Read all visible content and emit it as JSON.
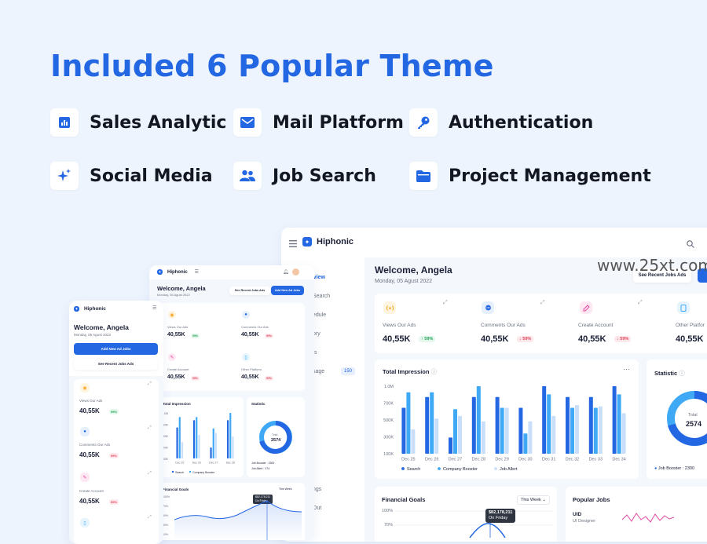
{
  "headline": "Included 6 Popular Theme",
  "features": [
    {
      "label": "Sales Analytic",
      "icon": "bar-chart-icon"
    },
    {
      "label": "Mail Platform",
      "icon": "mail-icon"
    },
    {
      "label": "Authentication",
      "icon": "key-icon"
    },
    {
      "label": "Social Media",
      "icon": "sparkle-icon"
    },
    {
      "label": "Job Search",
      "icon": "users-icon"
    },
    {
      "label": "Project Management",
      "icon": "folder-icon"
    }
  ],
  "watermark": "www.25xt.com",
  "colors": {
    "accent": "#2467e3",
    "background": "#eef4fd",
    "series_light": "#3fa9f5",
    "series_pale": "#c9def9"
  },
  "big_dashboard": {
    "brand": "Hiphonic",
    "welcome": "Welcome, Angela",
    "date": "Monday, 05 Agust 2022",
    "see_recent": "See Recent Jobs Ads",
    "add_btn": "A",
    "nav": [
      {
        "label": "rview"
      },
      {
        "label": "Search"
      },
      {
        "label": "edule"
      },
      {
        "label": "ory"
      },
      {
        "label": "ts"
      },
      {
        "label": "sage",
        "count": "150"
      },
      {
        "label": "ngs"
      },
      {
        "label": "Out"
      }
    ],
    "stats": [
      {
        "label": "Views Our Ads",
        "value": "40,55K",
        "change": "59%",
        "trend": "up"
      },
      {
        "label": "Comments Our Ads",
        "value": "40,55K",
        "change": "59%",
        "trend": "down"
      },
      {
        "label": "Create Account",
        "value": "40,55K",
        "change": "59%",
        "trend": "down"
      },
      {
        "label": "Other Platfor",
        "value": "40,55K"
      }
    ],
    "impression": {
      "title": "Total Impression",
      "legend": [
        "Search",
        "Company Booster",
        "Job Allert"
      ]
    },
    "statistic": {
      "title": "Statistic",
      "total_label": "Total",
      "total_value": "2574",
      "legend": "Job Booster : 2300"
    },
    "financial": {
      "title": "Financial Goals",
      "filter": "This Week",
      "ticks": [
        "100%",
        "70%"
      ],
      "tooltip_value": "$82,178,211",
      "tooltip_day": "On Friday"
    },
    "popular": {
      "title": "Popular Jobs",
      "job": "UID",
      "role": "UI Designer"
    }
  },
  "chart_data": {
    "type": "bar",
    "title": "Total Impression",
    "categories": [
      "Dec 25",
      "Dec 26",
      "Dec 27",
      "Dec 28",
      "Dec 29",
      "Dec 30",
      "Dec 31",
      "Dec 32",
      "Dec 33",
      "Dec 34"
    ],
    "y_ticks": [
      "1.0M",
      "700K",
      "500K",
      "300K",
      "100K"
    ],
    "ylim": [
      0,
      1000000
    ],
    "series": [
      {
        "name": "Search",
        "values": [
          680000,
          840000,
          240000,
          840000,
          840000,
          680000,
          1000000,
          840000,
          840000,
          1000000
        ]
      },
      {
        "name": "Company Booster",
        "values": [
          910000,
          910000,
          660000,
          1000000,
          680000,
          300000,
          880000,
          680000,
          680000,
          880000
        ]
      },
      {
        "name": "Job Allert",
        "values": [
          360000,
          520000,
          560000,
          480000,
          680000,
          480000,
          560000,
          720000,
          700000,
          600000
        ]
      }
    ]
  },
  "mid_dashboard": {
    "brand": "Hiphonic",
    "welcome": "Welcome, Angela",
    "date": "Monday, 05 Agust 2022",
    "see_recent": "See Recent Jobs Ads",
    "add_btn": "Add New Ad Jobs",
    "stats": [
      {
        "label": "Views Our Ads",
        "value": "40,55K",
        "change": "59%",
        "trend": "up"
      },
      {
        "label": "Comments Our Ads",
        "value": "40,55K",
        "change": "59%",
        "trend": "down"
      },
      {
        "label": "Create Account",
        "value": "40,55K",
        "change": "59%",
        "trend": "down"
      },
      {
        "label": "Other Platform",
        "value": "40,55K",
        "change": "59%",
        "trend": "down"
      }
    ],
    "impression_title": "Total Impression",
    "y_ticks": [
      "1.0M",
      "700K",
      "500K",
      "300K",
      "100K"
    ],
    "x_ticks": [
      "Dec 25",
      "Dec 26",
      "Dec 27",
      "Dec 28"
    ],
    "legend": [
      "Search",
      "Company Booster"
    ],
    "statistic_title": "Statistic",
    "total_label": "Total",
    "total_value": "2574",
    "stat_legend_1": "Job Booster : 2300",
    "stat_legend_2": "Job Allert : 274",
    "financial_title": "Financial Goals",
    "filter": "This Week",
    "tooltip_value": "$82,178,211",
    "tooltip_day": "On Friday",
    "fin_ticks": [
      "100%",
      "70%",
      "50%",
      "30%",
      "10%"
    ]
  },
  "small_dashboard": {
    "brand": "Hiphonic",
    "welcome": "Welcome, Angela",
    "date": "Monday, 05 Agust 2022",
    "add_btn": "Add New Ad Jobs",
    "see_recent": "See Recent Jobs Ads",
    "stats": [
      {
        "label": "Views Our Ads",
        "value": "40,55K",
        "change": "59%",
        "trend": "up"
      },
      {
        "label": "Comments Our Ads",
        "value": "40,55K",
        "change": "59%",
        "trend": "down"
      },
      {
        "label": "Create Account",
        "value": "40,55K",
        "change": "59%",
        "trend": "down"
      }
    ]
  }
}
